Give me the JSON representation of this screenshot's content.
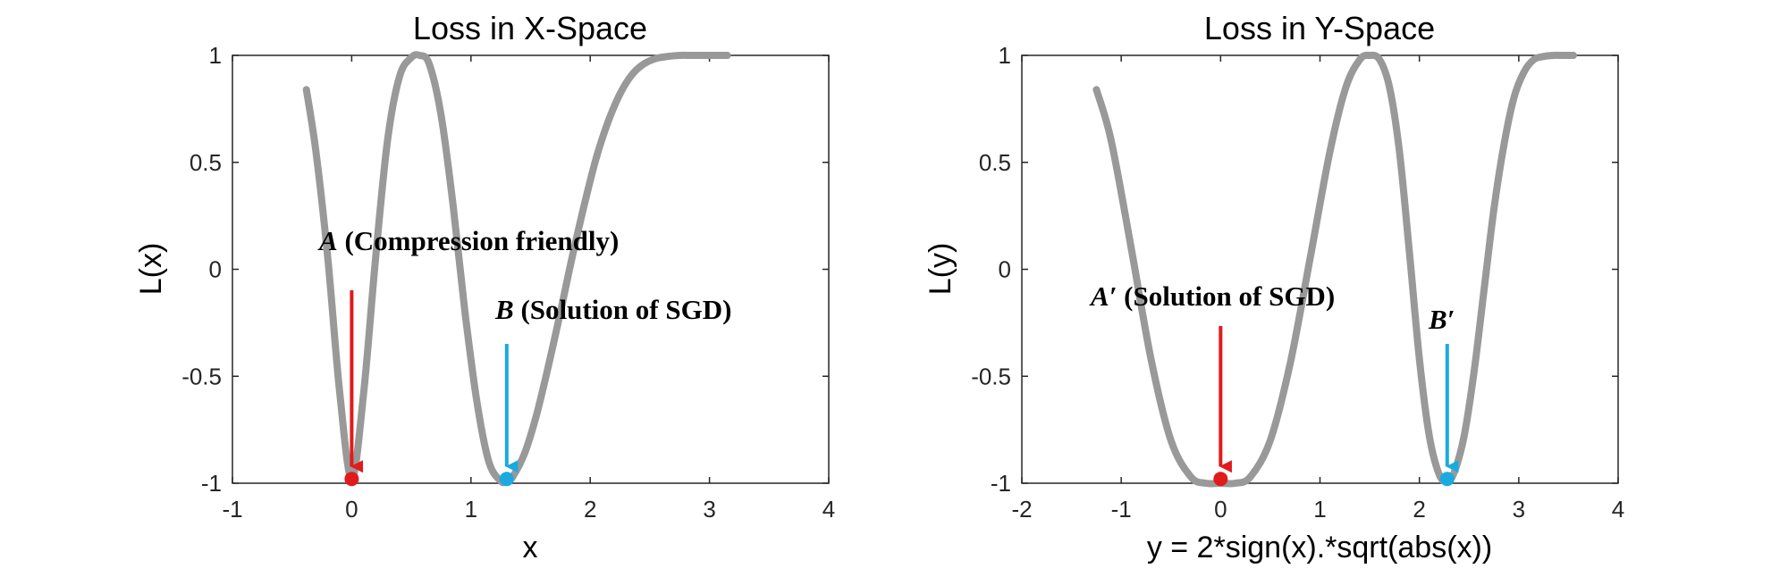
{
  "chart_data": [
    {
      "type": "line",
      "title": "Loss in X-Space",
      "xlabel": "x",
      "ylabel": "L(x)",
      "xlim": [
        -1,
        4
      ],
      "ylim": [
        -1,
        1
      ],
      "xticks": [
        -1,
        0,
        1,
        2,
        3,
        4
      ],
      "yticks": [
        -1,
        -0.5,
        0,
        0.5,
        1
      ],
      "xtick_labels": [
        "-1",
        "0",
        "1",
        "2",
        "3",
        "4"
      ],
      "ytick_labels": [
        "-1",
        "-0.5",
        "0",
        "0.5",
        "1"
      ],
      "grid": false,
      "line_color": "#999999",
      "series": [
        {
          "x": [
            -0.38,
            -0.3,
            -0.2,
            -0.1,
            0,
            0.1,
            0.2,
            0.3,
            0.4,
            0.5,
            0.57,
            0.65,
            0.75,
            0.85,
            0.95,
            1.05,
            1.15,
            1.25,
            1.3,
            1.35,
            1.45,
            1.55,
            1.65,
            1.75,
            1.85,
            1.95,
            2.05,
            2.15,
            2.25,
            2.35,
            2.45,
            2.55,
            2.65,
            2.75,
            2.85,
            2.95,
            3.05,
            3.15
          ],
          "y": [
            0.84,
            0.55,
            0.05,
            -0.58,
            -0.98,
            -0.58,
            0.05,
            0.6,
            0.9,
            0.99,
            1.0,
            0.96,
            0.72,
            0.3,
            -0.2,
            -0.62,
            -0.9,
            -0.99,
            -0.99,
            -0.97,
            -0.86,
            -0.68,
            -0.45,
            -0.2,
            0.06,
            0.3,
            0.52,
            0.69,
            0.82,
            0.91,
            0.96,
            0.985,
            0.995,
            1.0,
            1.0,
            1.0,
            1.0,
            1.0
          ]
        }
      ],
      "points": [
        {
          "label": "A",
          "note": " (Compression friendly)",
          "x": 0,
          "y": -0.98,
          "color": "#e11b1b"
        },
        {
          "label": "B",
          "note": " (Solution of SGD)",
          "x": 1.3,
          "y": -0.98,
          "color": "#1aaae0"
        }
      ]
    },
    {
      "type": "line",
      "title": "Loss in Y-Space",
      "xlabel": "y = 2*sign(x).*sqrt(abs(x))",
      "ylabel": "L(y)",
      "xlim": [
        -2,
        4
      ],
      "ylim": [
        -1,
        1
      ],
      "xticks": [
        -2,
        -1,
        0,
        1,
        2,
        3,
        4
      ],
      "yticks": [
        -1,
        -0.5,
        0,
        0.5,
        1
      ],
      "xtick_labels": [
        "-2",
        "-1",
        "0",
        "1",
        "2",
        "3",
        "4"
      ],
      "ytick_labels": [
        "-1",
        "-0.5",
        "0",
        "0.5",
        "1"
      ],
      "grid": false,
      "line_color": "#999999",
      "series": [
        {
          "x": [
            -1.25,
            -1.1,
            -0.9,
            -0.7,
            -0.5,
            -0.3,
            -0.15,
            0,
            0.15,
            0.3,
            0.5,
            0.7,
            0.9,
            1.1,
            1.26,
            1.4,
            1.5,
            1.6,
            1.7,
            1.8,
            1.9,
            2.0,
            2.1,
            2.2,
            2.28,
            2.35,
            2.45,
            2.55,
            2.65,
            2.75,
            2.85,
            2.95,
            3.05,
            3.15,
            3.25,
            3.35,
            3.45,
            3.55
          ],
          "y": [
            0.84,
            0.6,
            0.1,
            -0.42,
            -0.8,
            -0.97,
            -1.0,
            -1.0,
            -1.0,
            -0.97,
            -0.8,
            -0.44,
            0.05,
            0.55,
            0.85,
            0.98,
            1.0,
            0.98,
            0.85,
            0.55,
            0.08,
            -0.42,
            -0.78,
            -0.96,
            -0.99,
            -0.95,
            -0.78,
            -0.48,
            -0.1,
            0.28,
            0.58,
            0.8,
            0.92,
            0.98,
            0.995,
            1.0,
            1.0,
            1.0
          ]
        }
      ],
      "points": [
        {
          "label": "A′",
          "note": " (Solution of SGD)",
          "x": 0,
          "y": -0.98,
          "color": "#e11b1b"
        },
        {
          "label": "B′",
          "note": "",
          "x": 2.28,
          "y": -0.98,
          "color": "#1aaae0"
        }
      ]
    }
  ]
}
